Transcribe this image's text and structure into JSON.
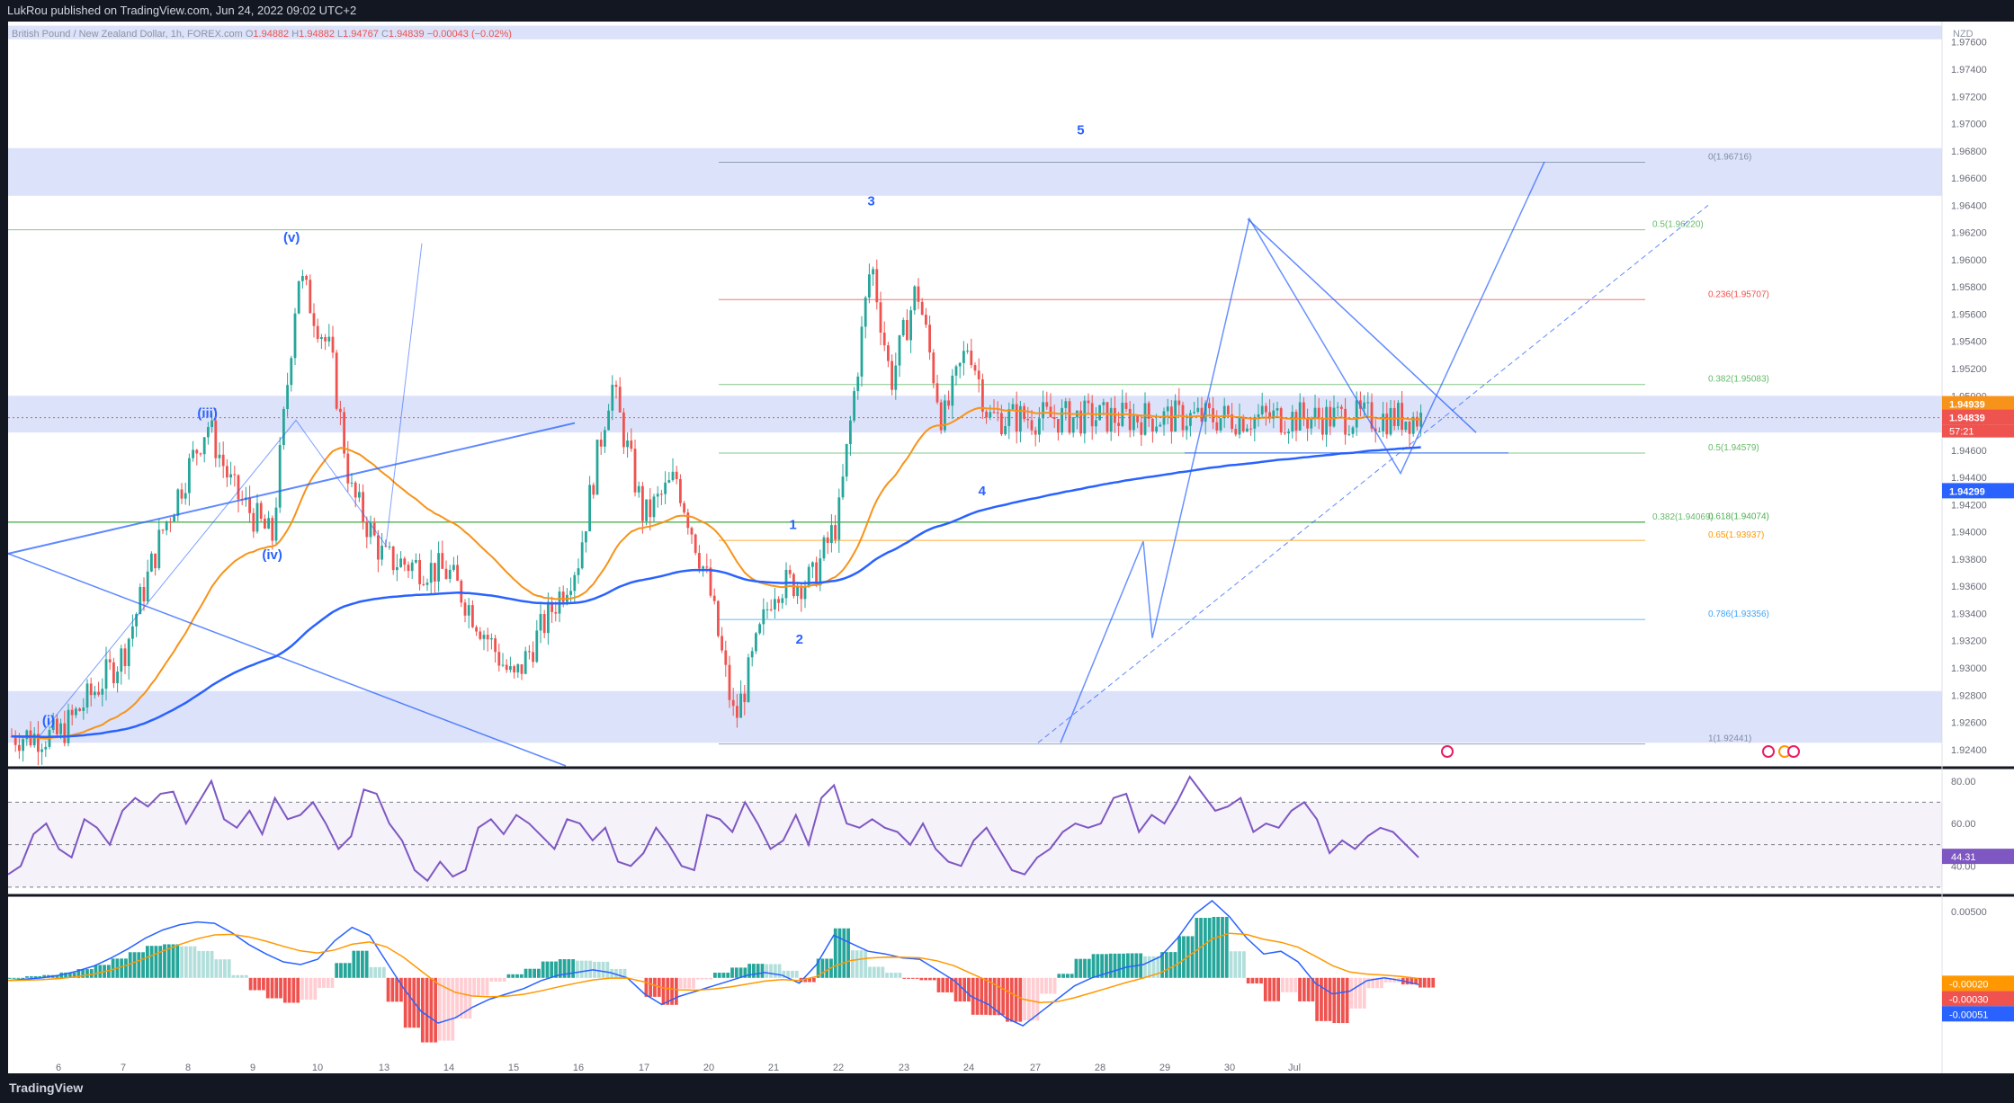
{
  "header": {
    "published": "LukRou published on TradingView.com, Jun 24, 2022 09:02 UTC+2"
  },
  "footer": {
    "brand": "TradingView"
  },
  "symbol": {
    "name": "British Pound / New Zealand Dollar, 1h, FOREX.com",
    "o_label": "O",
    "o": "1.94882",
    "h_label": "H",
    "h": "1.94882",
    "l_label": "L",
    "l": "1.94767",
    "c_label": "C",
    "c": "1.94839",
    "change": "−0.00043 (−0.02%)"
  },
  "colors": {
    "up": "#26a69a",
    "down": "#ef5350",
    "ema_fast": "#f7931a",
    "ema_slow": "#2962ff",
    "rsi": "#7e57c2",
    "macd": "#2962ff",
    "signal": "#ff9800",
    "zone": "#cdd6f7",
    "wave": "#2962ff"
  },
  "chart_data": [
    {
      "type": "candlestick",
      "currency": "NZD",
      "x_ticks": [
        "6",
        "7",
        "8",
        "9",
        "10",
        "13",
        "14",
        "15",
        "16",
        "17",
        "20",
        "21",
        "22",
        "23",
        "24",
        "27",
        "28",
        "29",
        "30",
        "Jul"
      ],
      "y_ticks": [
        "1.97600",
        "1.97400",
        "1.97200",
        "1.97000",
        "1.96800",
        "1.96600",
        "1.96400",
        "1.96200",
        "1.96000",
        "1.95800",
        "1.95600",
        "1.95400",
        "1.95200",
        "1.95000",
        "1.94800",
        "1.94600",
        "1.94400",
        "1.94200",
        "1.94000",
        "1.93800",
        "1.93600",
        "1.93400",
        "1.93200",
        "1.93000",
        "1.92800",
        "1.92600",
        "1.92400"
      ],
      "ylim": [
        1.9228,
        1.9775
      ],
      "last_price": "1.94839",
      "countdown": "57:21",
      "ema_fast_value": "1.94939",
      "ema_slow_value": "1.94299",
      "key_closes": [
        {
          "x": "6",
          "y": 1.925
        },
        {
          "x": "7",
          "y": 1.931
        },
        {
          "x": "7.6",
          "y": 1.94
        },
        {
          "x": "8.3",
          "y": 1.948
        },
        {
          "x": "8.7",
          "y": 1.943
        },
        {
          "x": "9.3",
          "y": 1.9395
        },
        {
          "x": "9.7",
          "y": 1.959
        },
        {
          "x": "10.2",
          "y": 1.953
        },
        {
          "x": "10.5",
          "y": 1.943
        },
        {
          "x": "13",
          "y": 1.938
        },
        {
          "x": "14",
          "y": 1.937
        },
        {
          "x": "15",
          "y": 1.929
        },
        {
          "x": "16",
          "y": 1.938
        },
        {
          "x": "16.5",
          "y": 1.951
        },
        {
          "x": "17",
          "y": 1.941
        },
        {
          "x": "17.5",
          "y": 1.944
        },
        {
          "x": "20",
          "y": 1.936
        },
        {
          "x": "20.4",
          "y": 1.926
        },
        {
          "x": "21",
          "y": 1.936
        },
        {
          "x": "21.6",
          "y": 1.9365
        },
        {
          "x": "22",
          "y": 1.941
        },
        {
          "x": "22.5",
          "y": 1.96
        },
        {
          "x": "22.8",
          "y": 1.951
        },
        {
          "x": "23.2",
          "y": 1.958
        },
        {
          "x": "23.6",
          "y": 1.948
        },
        {
          "x": "24",
          "y": 1.954
        },
        {
          "x": "24.3",
          "y": 1.9484
        }
      ],
      "wave_labels": [
        {
          "text": "(i)",
          "x": "5.8",
          "y": 1.9258
        },
        {
          "text": "(iii)",
          "x": "8.3",
          "y": 1.9484
        },
        {
          "text": "(iv)",
          "x": "9.3",
          "y": 1.938
        },
        {
          "text": "(v)",
          "x": "9.6",
          "y": 1.9613
        },
        {
          "text": "1",
          "x": "21.3",
          "y": 1.9402
        },
        {
          "text": "2",
          "x": "21.4",
          "y": 1.9318
        },
        {
          "text": "3",
          "x": "22.5",
          "y": 1.964
        },
        {
          "text": "4",
          "x": "24.2",
          "y": 1.9427
        },
        {
          "text": "5",
          "x": "27.7",
          "y": 1.9692
        }
      ],
      "fib_levels": [
        {
          "label": "0(1.96716)",
          "value": 1.96716
        },
        {
          "label": "0.5(1.96220)",
          "value": 1.9622
        },
        {
          "label": "0.236(1.95707)",
          "value": 1.95707
        },
        {
          "label": "0.382(1.95083)",
          "value": 1.95083
        },
        {
          "label": "0.5(1.94579)",
          "value": 1.94579
        },
        {
          "label": "0.382(1.94069)",
          "value": 1.94069
        },
        {
          "label": "0.618(1.94074)",
          "value": 1.94074
        },
        {
          "label": "0.65(1.93937)",
          "value": 1.93937
        },
        {
          "label": "0.786(1.93356)",
          "value": 1.93356
        },
        {
          "label": "1(1.92441)",
          "value": 1.92441
        }
      ]
    },
    {
      "type": "line",
      "name": "RSI",
      "y_ticks": [
        "80.00",
        "60.00",
        "40.00"
      ],
      "ylim": [
        27,
        85
      ],
      "last_value": "44.31",
      "values": [
        36,
        40,
        55,
        60,
        48,
        44,
        62,
        58,
        50,
        66,
        72,
        68,
        74,
        75,
        60,
        70,
        80,
        62,
        58,
        66,
        55,
        72,
        62,
        64,
        70,
        60,
        48,
        54,
        76,
        74,
        60,
        52,
        38,
        33,
        42,
        35,
        38,
        58,
        62,
        55,
        64,
        60,
        54,
        48,
        62,
        60,
        52,
        58,
        42,
        40,
        46,
        58,
        50,
        40,
        38,
        64,
        62,
        56,
        70,
        60,
        48,
        52,
        64,
        50,
        72,
        78,
        60,
        58,
        62,
        58,
        56,
        50,
        60,
        48,
        42,
        40,
        52,
        58,
        48,
        38,
        36,
        44,
        48,
        56,
        60,
        58,
        60,
        72,
        74,
        56,
        64,
        60,
        70,
        82,
        74,
        66,
        68,
        72,
        56,
        60,
        58,
        66,
        70,
        62,
        46,
        52,
        48,
        54,
        58,
        56,
        50,
        44
      ]
    },
    {
      "type": "bar+line",
      "name": "MACD",
      "y_ticks": [
        "0.00500"
      ],
      "ylim": [
        -0.0065,
        0.006
      ],
      "last_values": {
        "signal": "-0.00020",
        "histogram": "-0.00030",
        "macd": "-0.00051"
      },
      "macd": [
        -0.0002,
        -0.0001,
        0.0,
        0.0002,
        0.0005,
        0.0009,
        0.0015,
        0.0022,
        0.003,
        0.0036,
        0.004,
        0.0042,
        0.0041,
        0.0034,
        0.0025,
        0.0018,
        0.0012,
        0.001,
        0.0014,
        0.0028,
        0.0038,
        0.0032,
        0.0012,
        -0.0008,
        -0.0025,
        -0.0034,
        -0.003,
        -0.0022,
        -0.0016,
        -0.0012,
        -0.0008,
        -0.0002,
        0.0002,
        0.0004,
        0.0006,
        0.0004,
        0.0,
        -0.0012,
        -0.002,
        -0.0014,
        -0.001,
        -0.0006,
        -0.0002,
        0.0002,
        0.0004,
        0.0002,
        -0.0004,
        0.001,
        0.0032,
        0.0026,
        0.002,
        0.0018,
        0.0015,
        0.0014,
        0.0006,
        -0.0002,
        -0.0014,
        -0.002,
        -0.003,
        -0.0036,
        -0.0026,
        -0.0016,
        -0.0006,
        0.0,
        0.0004,
        0.0008,
        0.001,
        0.0016,
        0.003,
        0.0048,
        0.0058,
        0.0046,
        0.003,
        0.0018,
        0.002,
        0.0012,
        -0.0004,
        -0.0012,
        -0.001,
        -0.0002,
        0.0,
        -0.0002,
        -0.0005
      ]
    }
  ]
}
